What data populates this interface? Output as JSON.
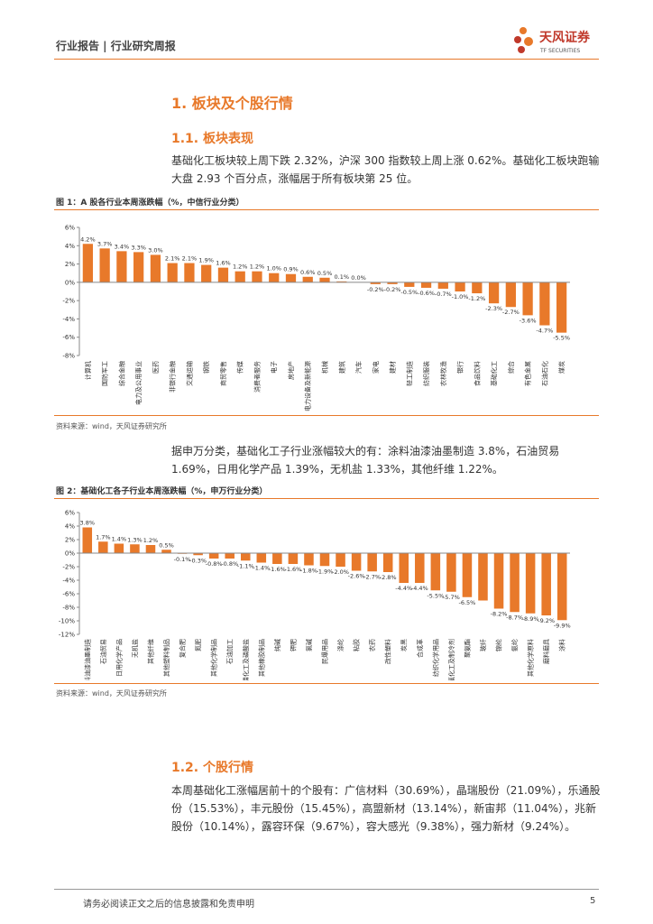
{
  "header": {
    "title": "行业报告 | 行业研究周报",
    "brand": "天风证券",
    "brand_en": "TF SECURITIES"
  },
  "section": {
    "title": "1. 板块及个股行情",
    "sub1": {
      "title": "1.1. 板块表现",
      "text": "基础化工板块较上周下跌 2.32%，沪深 300 指数较上周上涨 0.62%。基础化工板块跑输大盘 2.93 个百分点，涨幅居于所有板块第 25 位。",
      "text2": "据申万分类，基础化工子行业涨幅较大的有：涂料油漆油墨制造 3.8%，石油贸易 1.69%，日用化学产品 1.39%，无机盐 1.33%，其他纤维 1.22%。"
    },
    "sub2": {
      "title": "1.2. 个股行情",
      "text": "本周基础化工涨幅居前十的个股有：广信材料（30.69%），晶瑞股份（21.09%），乐通股份（15.53%），丰元股份（15.45%），高盟新材（13.14%），新宙邦（11.04%），兆新股份（10.14%），露容环保（9.67%），容大感光（9.38%），强力新材（9.24%）。"
    }
  },
  "chart_data": [
    {
      "type": "bar",
      "title": "图 1：A 股各行业本周涨跌幅（%，中信行业分类）",
      "source": "资料来源：wind，天风证券研究所",
      "categories": [
        "计算机",
        "国防军工",
        "综合金融",
        "电力及公用事业",
        "医药",
        "非银行金融",
        "交通运输",
        "钢铁",
        "商贸零售",
        "传媒",
        "消费者服务",
        "电子",
        "房地产",
        "电力设备及新能源",
        "机械",
        "建筑",
        "汽车",
        "家电",
        "建材",
        "轻工制造",
        "纺织服装",
        "农林牧渔",
        "银行",
        "食品饮料",
        "基础化工",
        "综合",
        "有色金属",
        "石油石化",
        "煤炭"
      ],
      "values": [
        4.2,
        3.7,
        3.4,
        3.3,
        3.0,
        2.1,
        2.1,
        1.9,
        1.6,
        1.2,
        1.2,
        1.0,
        0.9,
        0.6,
        0.5,
        0.1,
        0.0,
        -0.2,
        -0.2,
        -0.5,
        -0.6,
        -0.7,
        -1.0,
        -1.2,
        -2.3,
        -2.7,
        -3.6,
        -4.7,
        -5.5
      ],
      "value_labels": [
        "4.2%",
        "3.7%",
        "3.4%",
        "3.3%",
        "3.0%",
        "2.1%",
        "2.1%",
        "1.9%",
        "1.6%",
        "1.2%",
        "1.2%",
        "1.0%",
        "0.9%",
        "0.6%",
        "0.5%",
        "0.1%",
        "0.0%",
        "-0.2%",
        "-0.2%",
        "-0.5%",
        "-0.6%",
        "-0.7%",
        "-1.0%",
        "-1.2%",
        "-2.3%",
        "-2.7%",
        "-3.6%",
        "-4.7%",
        "-5.5%"
      ],
      "color": "#e8792a",
      "ylim": [
        -8,
        6
      ],
      "yticks": [
        {
          "value": -8,
          "label": "-8%"
        },
        {
          "value": -6,
          "label": "-6%"
        },
        {
          "value": -4,
          "label": "-4%"
        },
        {
          "value": -2,
          "label": "-2%"
        },
        {
          "value": 0,
          "label": "0%"
        },
        {
          "value": 2,
          "label": "2%"
        },
        {
          "value": 4,
          "label": "4%"
        },
        {
          "value": 6,
          "label": "6%"
        }
      ]
    },
    {
      "type": "bar",
      "title": "图 2：基础化工各子行业本周涨跌幅（%，申万行业分类）",
      "source": "资料来源：wind，天风证券研究所",
      "categories": [
        "涂料油漆油墨制造",
        "石油贸易",
        "日用化学产品",
        "无机盐",
        "其他纤维",
        "其他塑料制品",
        "复合肥",
        "氮肥",
        "其他化学制品",
        "石油加工",
        "磷化工及磷酸盐",
        "其他橡胶制品",
        "纯碱",
        "钾肥",
        "氯碱",
        "民爆用品",
        "涤纶",
        "粘胶",
        "农药",
        "改性塑料",
        "炭黑",
        "合成革",
        "纺织化学用品",
        "氟化工及制冷剂",
        "聚氨酯",
        "玻纤",
        "锦纶",
        "氨纶",
        "其他化学原料",
        "磨料磨具",
        "涂料"
      ],
      "values": [
        3.8,
        1.7,
        1.4,
        1.3,
        1.2,
        0.5,
        -0.1,
        -0.3,
        -0.8,
        -0.8,
        -1.1,
        -1.4,
        -1.6,
        -1.6,
        -1.8,
        -1.9,
        -2.0,
        -2.6,
        -2.7,
        -2.8,
        -4.4,
        -4.4,
        -5.5,
        -5.7,
        -6.5,
        -7.0,
        -8.2,
        -8.7,
        -8.9,
        -9.2,
        -9.9
      ],
      "value_labels": [
        "3.8%",
        "1.7%",
        "1.4%",
        "1.3%",
        "1.2%",
        "0.5%",
        "-0.1%",
        "-0.3%",
        "-0.8%",
        "-0.8%",
        "-1.1%",
        "-1.4%",
        "-1.6%",
        "-1.6%",
        "-1.8%",
        "-1.9%",
        "-2.0%",
        "-2.6%",
        "-2.7%",
        "-2.8%",
        "-4.4%",
        "-4.4%",
        "-5.5%",
        "-5.7%",
        "-6.5%",
        null,
        "-8.2%",
        "-8.7%",
        "-8.9%",
        "-9.2%",
        "-9.9%"
      ],
      "color": "#e8792a",
      "ylim": [
        -12,
        6
      ],
      "yticks": [
        {
          "value": -12,
          "label": "-12%"
        },
        {
          "value": -10,
          "label": "-10%"
        },
        {
          "value": -8,
          "label": "-8%"
        },
        {
          "value": -6,
          "label": "-6%"
        },
        {
          "value": -4,
          "label": "-4%"
        },
        {
          "value": -2,
          "label": "-2%"
        },
        {
          "value": 0,
          "label": "0%"
        },
        {
          "value": 2,
          "label": "2%"
        },
        {
          "value": 4,
          "label": "4%"
        },
        {
          "value": 6,
          "label": "6%"
        }
      ]
    }
  ],
  "footer": {
    "text": "请务必阅读正文之后的信息披露和免责申明",
    "page": "5"
  }
}
